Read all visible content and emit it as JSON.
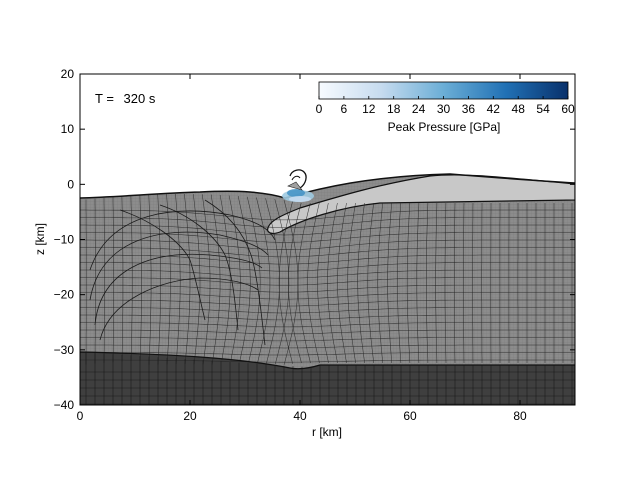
{
  "figure": {
    "time_prefix": "T =",
    "time_value": "320 s",
    "xlabel": "r [km]",
    "ylabel": "z [km]",
    "x_ticks": [
      "0",
      "20",
      "40",
      "60",
      "80"
    ],
    "y_ticks": [
      "20",
      "10",
      "0",
      "−10",
      "−20",
      "−30",
      "−40"
    ],
    "colorbar": {
      "label": "Peak Pressure [GPa]",
      "ticks": [
        "0",
        "6",
        "12",
        "18",
        "24",
        "30",
        "36",
        "42",
        "48",
        "54",
        "60"
      ],
      "min": 0,
      "max": 60
    },
    "colors": {
      "crust": "#8c8c8c",
      "mantle": "#3f3f3f",
      "melt_sheet": "#c8c8c8",
      "mesh_lines": "#1e1e1e",
      "pressure_low": "#f7fbff",
      "pressure_mid": "#6baed6",
      "pressure_high": "#08306b"
    }
  }
}
